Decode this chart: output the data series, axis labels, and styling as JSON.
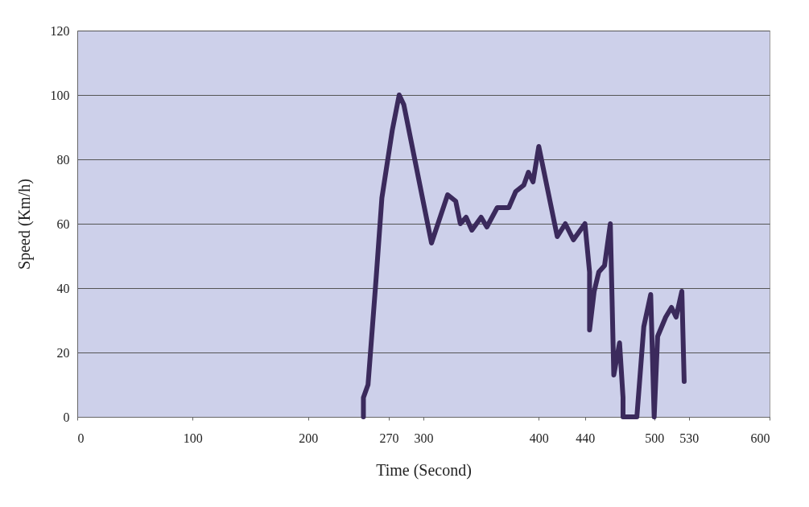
{
  "chart_data": {
    "type": "line",
    "xlabel": "Time (Second)",
    "ylabel": "Speed (Km/h)",
    "xlim": [
      0,
      600
    ],
    "xticks": [
      0,
      100,
      200,
      270,
      300,
      400,
      440,
      500,
      530,
      600
    ],
    "ylim": [
      0,
      120
    ],
    "yticks": [
      0,
      20,
      40,
      60,
      80,
      100,
      120
    ],
    "grid": "y",
    "marker": "none",
    "line_style": "solid",
    "series": [
      {
        "color": "#3b2a5c",
        "x": [
          248,
          248,
          252,
          259,
          264,
          273,
          279,
          283,
          307,
          321,
          328,
          332,
          337,
          342,
          350,
          355,
          364,
          374,
          380,
          387,
          391,
          395,
          400,
          416,
          423,
          430,
          440,
          444,
          444,
          448,
          452,
          457,
          462,
          465,
          470,
          473,
          473,
          485,
          491,
          497,
          500,
          503,
          510,
          515,
          519,
          524,
          526
        ],
        "values": [
          0,
          6,
          10,
          43,
          68,
          89,
          100,
          97,
          54,
          69,
          67,
          60,
          62,
          58,
          62,
          59,
          65,
          65,
          70,
          72,
          76,
          73,
          84,
          56,
          60,
          55,
          60,
          45,
          27,
          39,
          45,
          47,
          60,
          13,
          23,
          6,
          0,
          0,
          28,
          38,
          0,
          25,
          31,
          34,
          31,
          39,
          11
        ]
      }
    ]
  }
}
